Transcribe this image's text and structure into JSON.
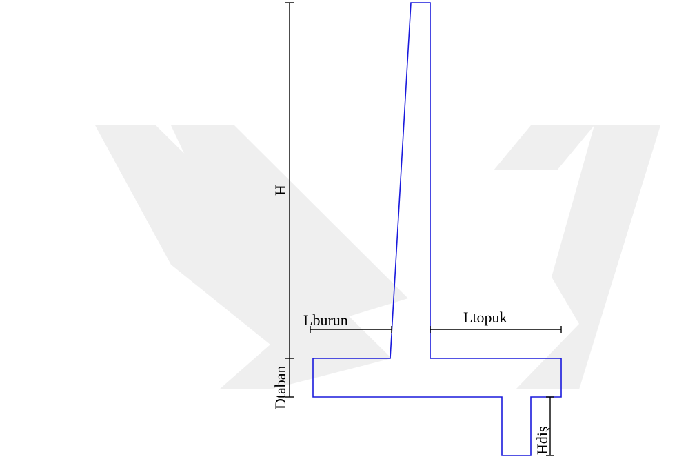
{
  "diagram": {
    "labels": {
      "H": "H",
      "Dtaban": "Dtaban",
      "Lburun": "Lburun",
      "Ltopuk": "Ltopuk",
      "Hdis": "Hdiş"
    },
    "colors": {
      "wall_outline": "#1a1adc",
      "dimension_lines": "#000000",
      "watermark": "#efefef"
    }
  }
}
